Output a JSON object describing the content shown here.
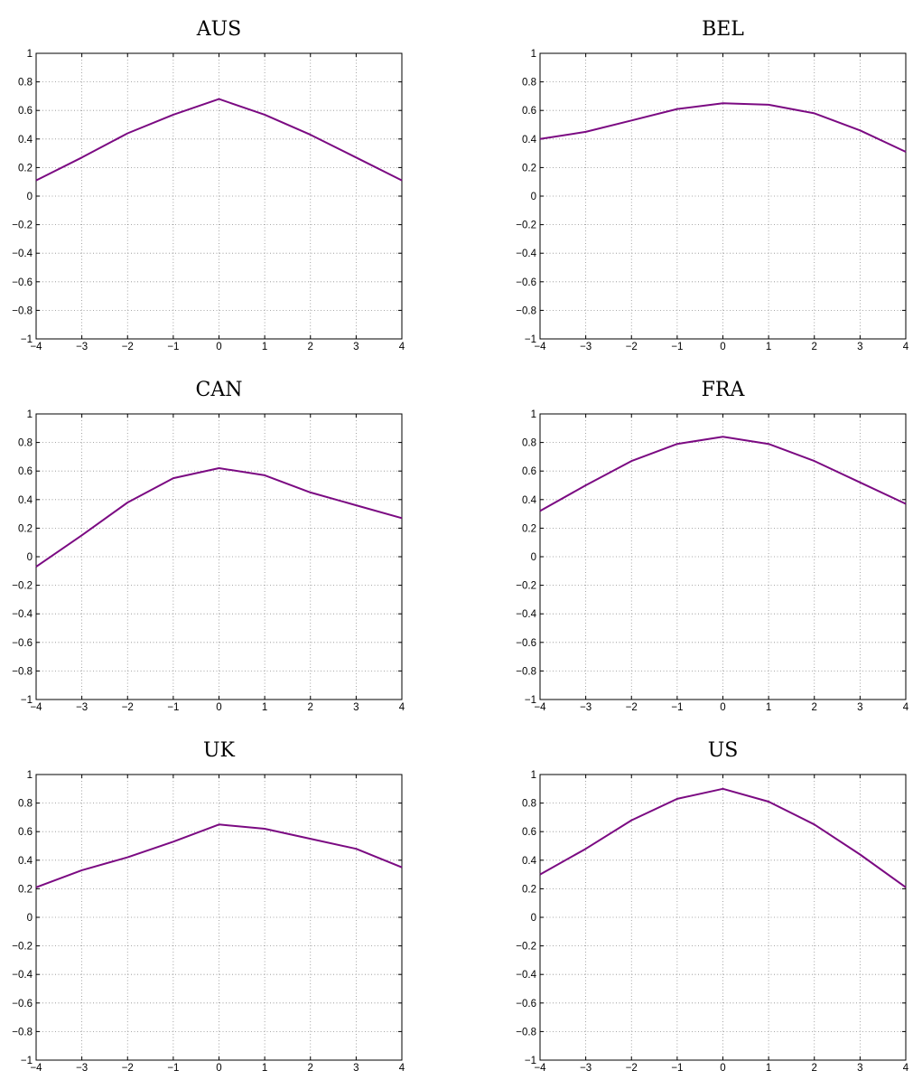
{
  "colors": {
    "series": "#7b0a82"
  },
  "chart_data": [
    {
      "type": "line",
      "title": "AUS",
      "xlim": [
        -4,
        4
      ],
      "ylim": [
        -1,
        1
      ],
      "grid": true,
      "x_ticks": [
        "−4",
        "−3",
        "−2",
        "−1",
        "0",
        "1",
        "2",
        "3",
        "4"
      ],
      "y_ticks": [
        "−1",
        "−0.8",
        "−0.6",
        "−0.4",
        "−0.2",
        "0",
        "0.2",
        "0.4",
        "0.6",
        "0.8",
        "1"
      ],
      "x": [
        -4,
        -3,
        -2,
        -1,
        0,
        1,
        2,
        3,
        4
      ],
      "series": [
        {
          "values": [
            0.11,
            0.27,
            0.44,
            0.57,
            0.68,
            0.57,
            0.43,
            0.27,
            0.11
          ]
        }
      ]
    },
    {
      "type": "line",
      "title": "BEL",
      "xlim": [
        -4,
        4
      ],
      "ylim": [
        -1,
        1
      ],
      "grid": true,
      "x_ticks": [
        "−4",
        "−3",
        "−2",
        "−1",
        "0",
        "1",
        "2",
        "3",
        "4"
      ],
      "y_ticks": [
        "−1",
        "−0.8",
        "−0.6",
        "−0.4",
        "−0.2",
        "0",
        "0.2",
        "0.4",
        "0.6",
        "0.8",
        "1"
      ],
      "x": [
        -4,
        -3,
        -2,
        -1,
        0,
        1,
        2,
        3,
        4
      ],
      "series": [
        {
          "values": [
            0.4,
            0.45,
            0.53,
            0.61,
            0.65,
            0.64,
            0.58,
            0.46,
            0.31
          ]
        }
      ]
    },
    {
      "type": "line",
      "title": "CAN",
      "xlim": [
        -4,
        4
      ],
      "ylim": [
        -1,
        1
      ],
      "grid": true,
      "x_ticks": [
        "−4",
        "−3",
        "−2",
        "−1",
        "0",
        "1",
        "2",
        "3",
        "4"
      ],
      "y_ticks": [
        "−1",
        "−0.8",
        "−0.6",
        "−0.4",
        "−0.2",
        "0",
        "0.2",
        "0.4",
        "0.6",
        "0.8",
        "1"
      ],
      "x": [
        -4,
        -3,
        -2,
        -1,
        0,
        1,
        2,
        3,
        4
      ],
      "series": [
        {
          "values": [
            -0.07,
            0.15,
            0.38,
            0.55,
            0.62,
            0.57,
            0.45,
            0.36,
            0.27
          ]
        }
      ]
    },
    {
      "type": "line",
      "title": "FRA",
      "xlim": [
        -4,
        4
      ],
      "ylim": [
        -1,
        1
      ],
      "grid": true,
      "x_ticks": [
        "−4",
        "−3",
        "−2",
        "−1",
        "0",
        "1",
        "2",
        "3",
        "4"
      ],
      "y_ticks": [
        "−1",
        "−0.8",
        "−0.6",
        "−0.4",
        "−0.2",
        "0",
        "0.2",
        "0.4",
        "0.6",
        "0.8",
        "1"
      ],
      "x": [
        -4,
        -3,
        -2,
        -1,
        0,
        1,
        2,
        3,
        4
      ],
      "series": [
        {
          "values": [
            0.32,
            0.5,
            0.67,
            0.79,
            0.84,
            0.79,
            0.67,
            0.52,
            0.37
          ]
        }
      ]
    },
    {
      "type": "line",
      "title": "UK",
      "xlim": [
        -4,
        4
      ],
      "ylim": [
        -1,
        1
      ],
      "grid": true,
      "x_ticks": [
        "−4",
        "−3",
        "−2",
        "−1",
        "0",
        "1",
        "2",
        "3",
        "4"
      ],
      "y_ticks": [
        "−1",
        "−0.8",
        "−0.6",
        "−0.4",
        "−0.2",
        "0",
        "0.2",
        "0.4",
        "0.6",
        "0.8",
        "1"
      ],
      "x": [
        -4,
        -3,
        -2,
        -1,
        0,
        1,
        2,
        3,
        4
      ],
      "series": [
        {
          "values": [
            0.21,
            0.33,
            0.42,
            0.53,
            0.65,
            0.62,
            0.55,
            0.48,
            0.35
          ]
        }
      ]
    },
    {
      "type": "line",
      "title": "US",
      "xlim": [
        -4,
        4
      ],
      "ylim": [
        -1,
        1
      ],
      "grid": true,
      "x_ticks": [
        "−4",
        "−3",
        "−2",
        "−1",
        "0",
        "1",
        "2",
        "3",
        "4"
      ],
      "y_ticks": [
        "−1",
        "−0.8",
        "−0.6",
        "−0.4",
        "−0.2",
        "0",
        "0.2",
        "0.4",
        "0.6",
        "0.8",
        "1"
      ],
      "x": [
        -4,
        -3,
        -2,
        -1,
        0,
        1,
        2,
        3,
        4
      ],
      "series": [
        {
          "values": [
            0.3,
            0.48,
            0.68,
            0.83,
            0.9,
            0.81,
            0.65,
            0.44,
            0.21
          ]
        }
      ]
    }
  ]
}
